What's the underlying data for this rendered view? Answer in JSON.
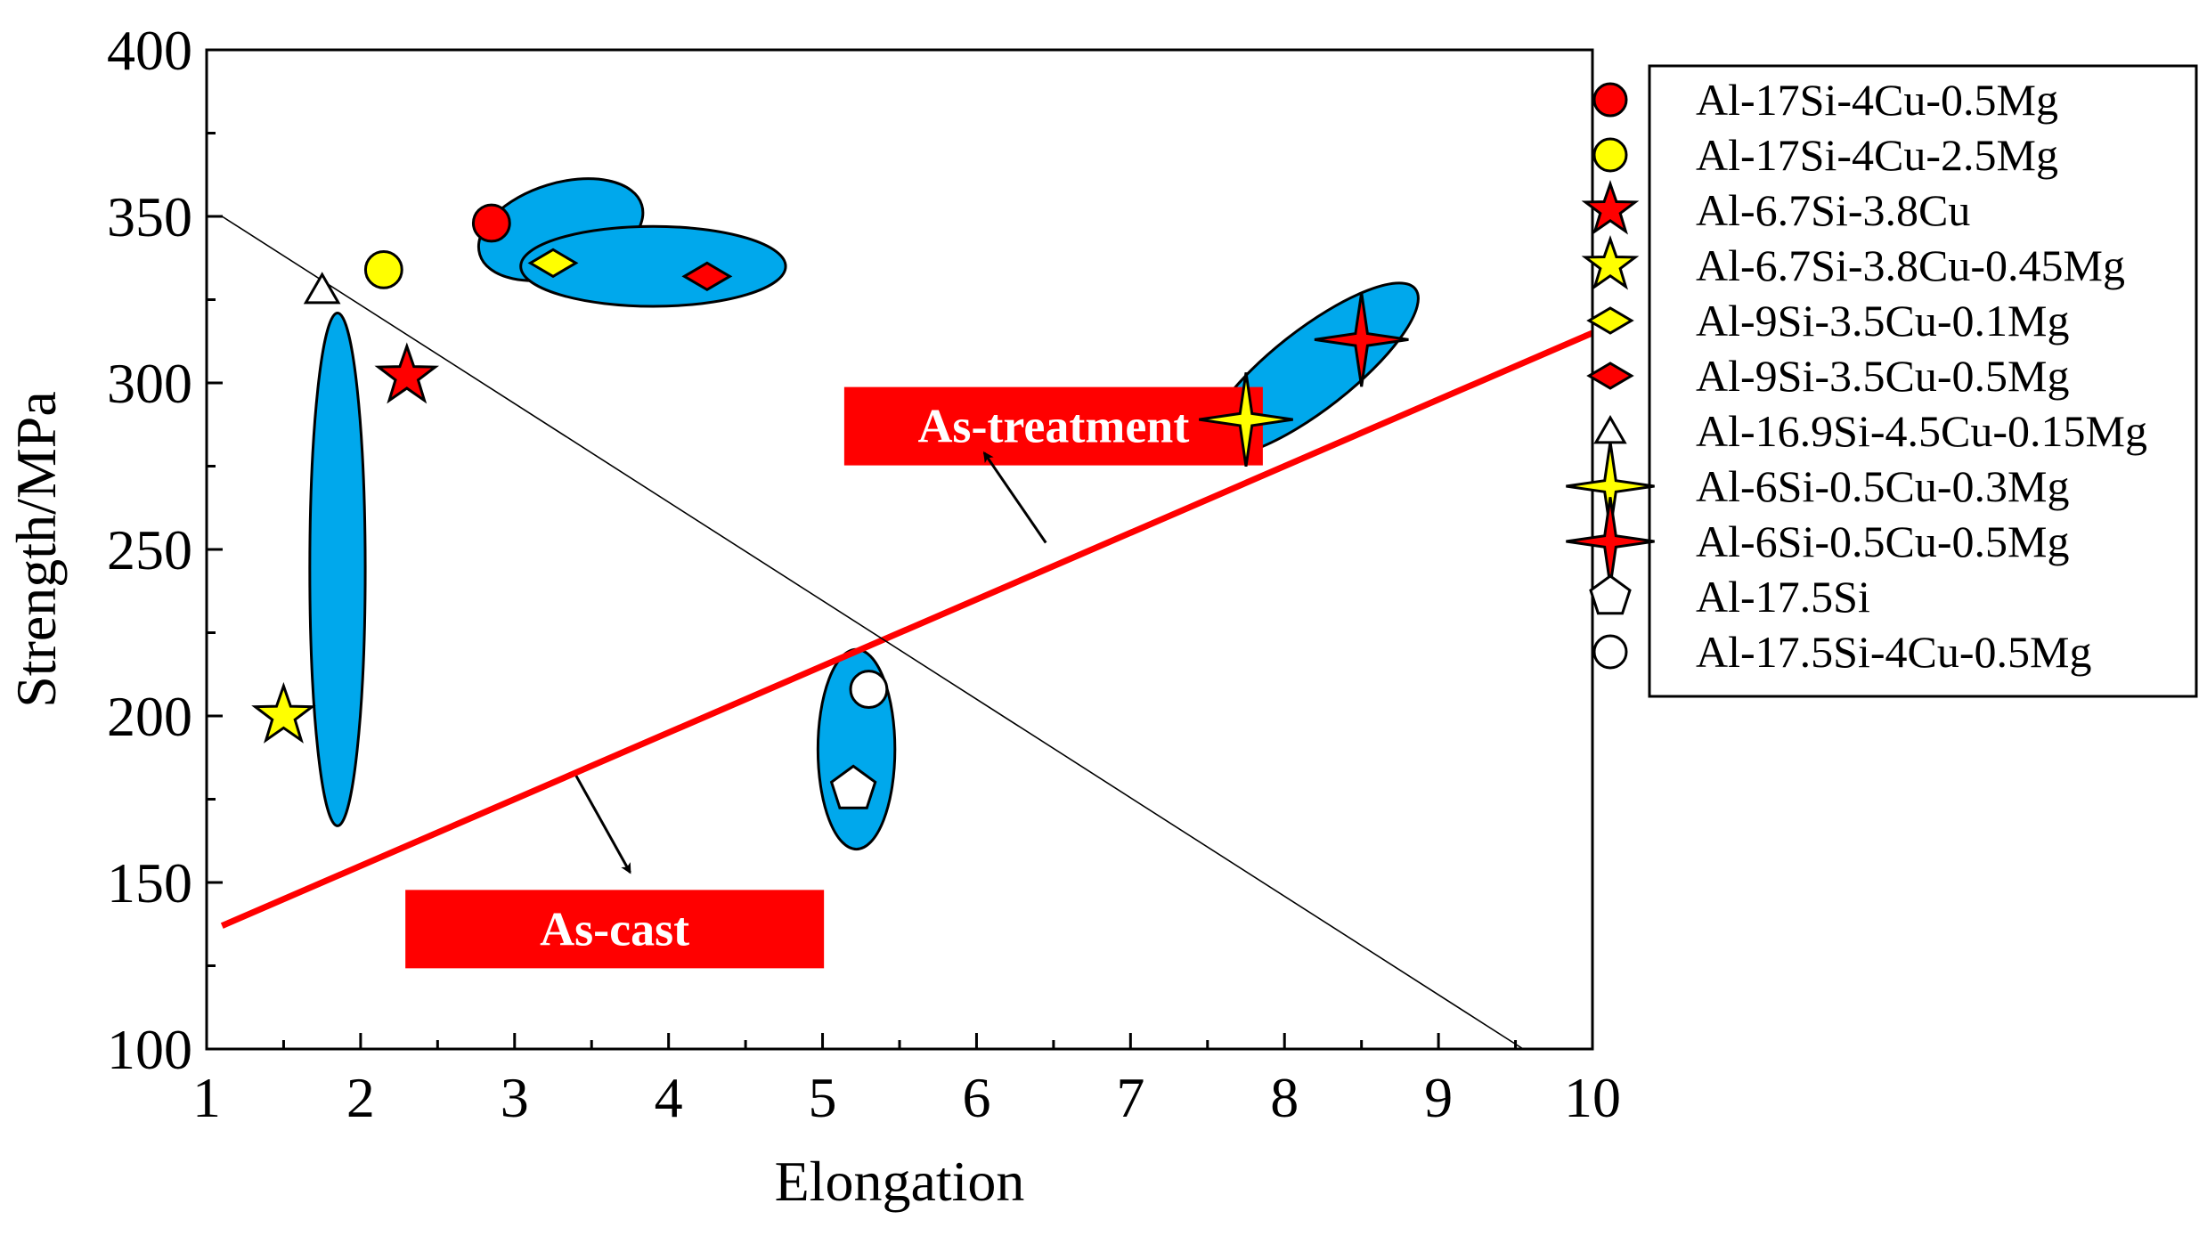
{
  "chart_data": {
    "type": "scatter",
    "title": "",
    "xlabel": "Elongation",
    "ylabel": "Strength/MPa",
    "xlim": [
      1,
      10
    ],
    "ylim": [
      100,
      400
    ],
    "xticks": [
      "1",
      "2",
      "3",
      "4",
      "5",
      "6",
      "7",
      "8",
      "9",
      "10"
    ],
    "yticks": [
      "100",
      "150",
      "200",
      "250",
      "300",
      "350",
      "400"
    ],
    "series": [
      {
        "name": "Al-17Si-4Cu-0.5Mg",
        "marker": "circle",
        "color": "#ff0000",
        "points": [
          [
            2.85,
            348
          ]
        ]
      },
      {
        "name": "Al-17Si-4Cu-2.5Mg",
        "marker": "circle",
        "color": "#ffff00",
        "points": [
          [
            2.15,
            334
          ]
        ]
      },
      {
        "name": "Al-6.7Si-3.8Cu",
        "marker": "star",
        "color": "#ff0000",
        "points": [
          [
            2.3,
            302
          ]
        ]
      },
      {
        "name": "Al-6.7Si-3.8Cu-0.45Mg",
        "marker": "star",
        "color": "#ffff00",
        "points": [
          [
            1.5,
            200
          ]
        ]
      },
      {
        "name": "Al-9Si-3.5Cu-0.1Mg",
        "marker": "diamond",
        "color": "#ffff00",
        "points": [
          [
            3.25,
            336
          ]
        ]
      },
      {
        "name": "Al-9Si-3.5Cu-0.5Mg",
        "marker": "diamond",
        "color": "#ff0000",
        "points": [
          [
            4.25,
            332
          ]
        ]
      },
      {
        "name": "Al-16.9Si-4.5Cu-0.15Mg",
        "marker": "triangle",
        "color": "#ffffff",
        "points": [
          [
            1.75,
            328
          ]
        ]
      },
      {
        "name": "Al-6Si-0.5Cu-0.3Mg",
        "marker": "star4",
        "color": "#ffff00",
        "points": [
          [
            7.75,
            289
          ]
        ]
      },
      {
        "name": "Al-6Si-0.5Cu-0.5Mg",
        "marker": "star4",
        "color": "#ff0000",
        "points": [
          [
            8.5,
            313
          ]
        ]
      },
      {
        "name": "Al-17.5Si",
        "marker": "pentagon",
        "color": "#ffffff",
        "points": [
          [
            5.2,
            178
          ]
        ]
      },
      {
        "name": "Al-17.5Si-4Cu-0.5Mg",
        "marker": "circle",
        "color": "#ffffff",
        "points": [
          [
            5.3,
            208
          ]
        ]
      }
    ],
    "lines": [
      {
        "name": "boundary",
        "color": "#ff0000",
        "from": [
          1.1,
          137
        ],
        "to": [
          10,
          315
        ]
      },
      {
        "name": "diagonal",
        "color": "#000000",
        "from": [
          1.1,
          350
        ],
        "to": [
          9.55,
          100
        ]
      }
    ],
    "clusters": [
      {
        "cx": 3.3,
        "cy": 346,
        "rx": 0.55,
        "ry": 14,
        "angle_deg": -17
      },
      {
        "cx": 3.9,
        "cy": 335,
        "rx": 0.86,
        "ry": 12,
        "angle_deg": 0
      },
      {
        "cx": 1.85,
        "cy": 244,
        "rx": 0.18,
        "ry": 77,
        "angle_deg": 0
      },
      {
        "cx": 8.18,
        "cy": 304,
        "rx": 0.85,
        "ry": 12,
        "angle_deg": -38
      },
      {
        "cx": 5.22,
        "cy": 190,
        "rx": 0.25,
        "ry": 30,
        "angle_deg": 0
      }
    ],
    "annotations": [
      {
        "text": "As-treatment",
        "box_color": "#ff0000",
        "x": 6.5,
        "y": 287,
        "arrow_from": [
          6.45,
          252
        ],
        "arrow_to": [
          6.05,
          279
        ]
      },
      {
        "text": "As-cast",
        "box_color": "#ff0000",
        "x": 3.65,
        "y": 136,
        "arrow_from": [
          3.4,
          182
        ],
        "arrow_to": [
          3.75,
          153
        ]
      }
    ],
    "legend_position": "right"
  }
}
